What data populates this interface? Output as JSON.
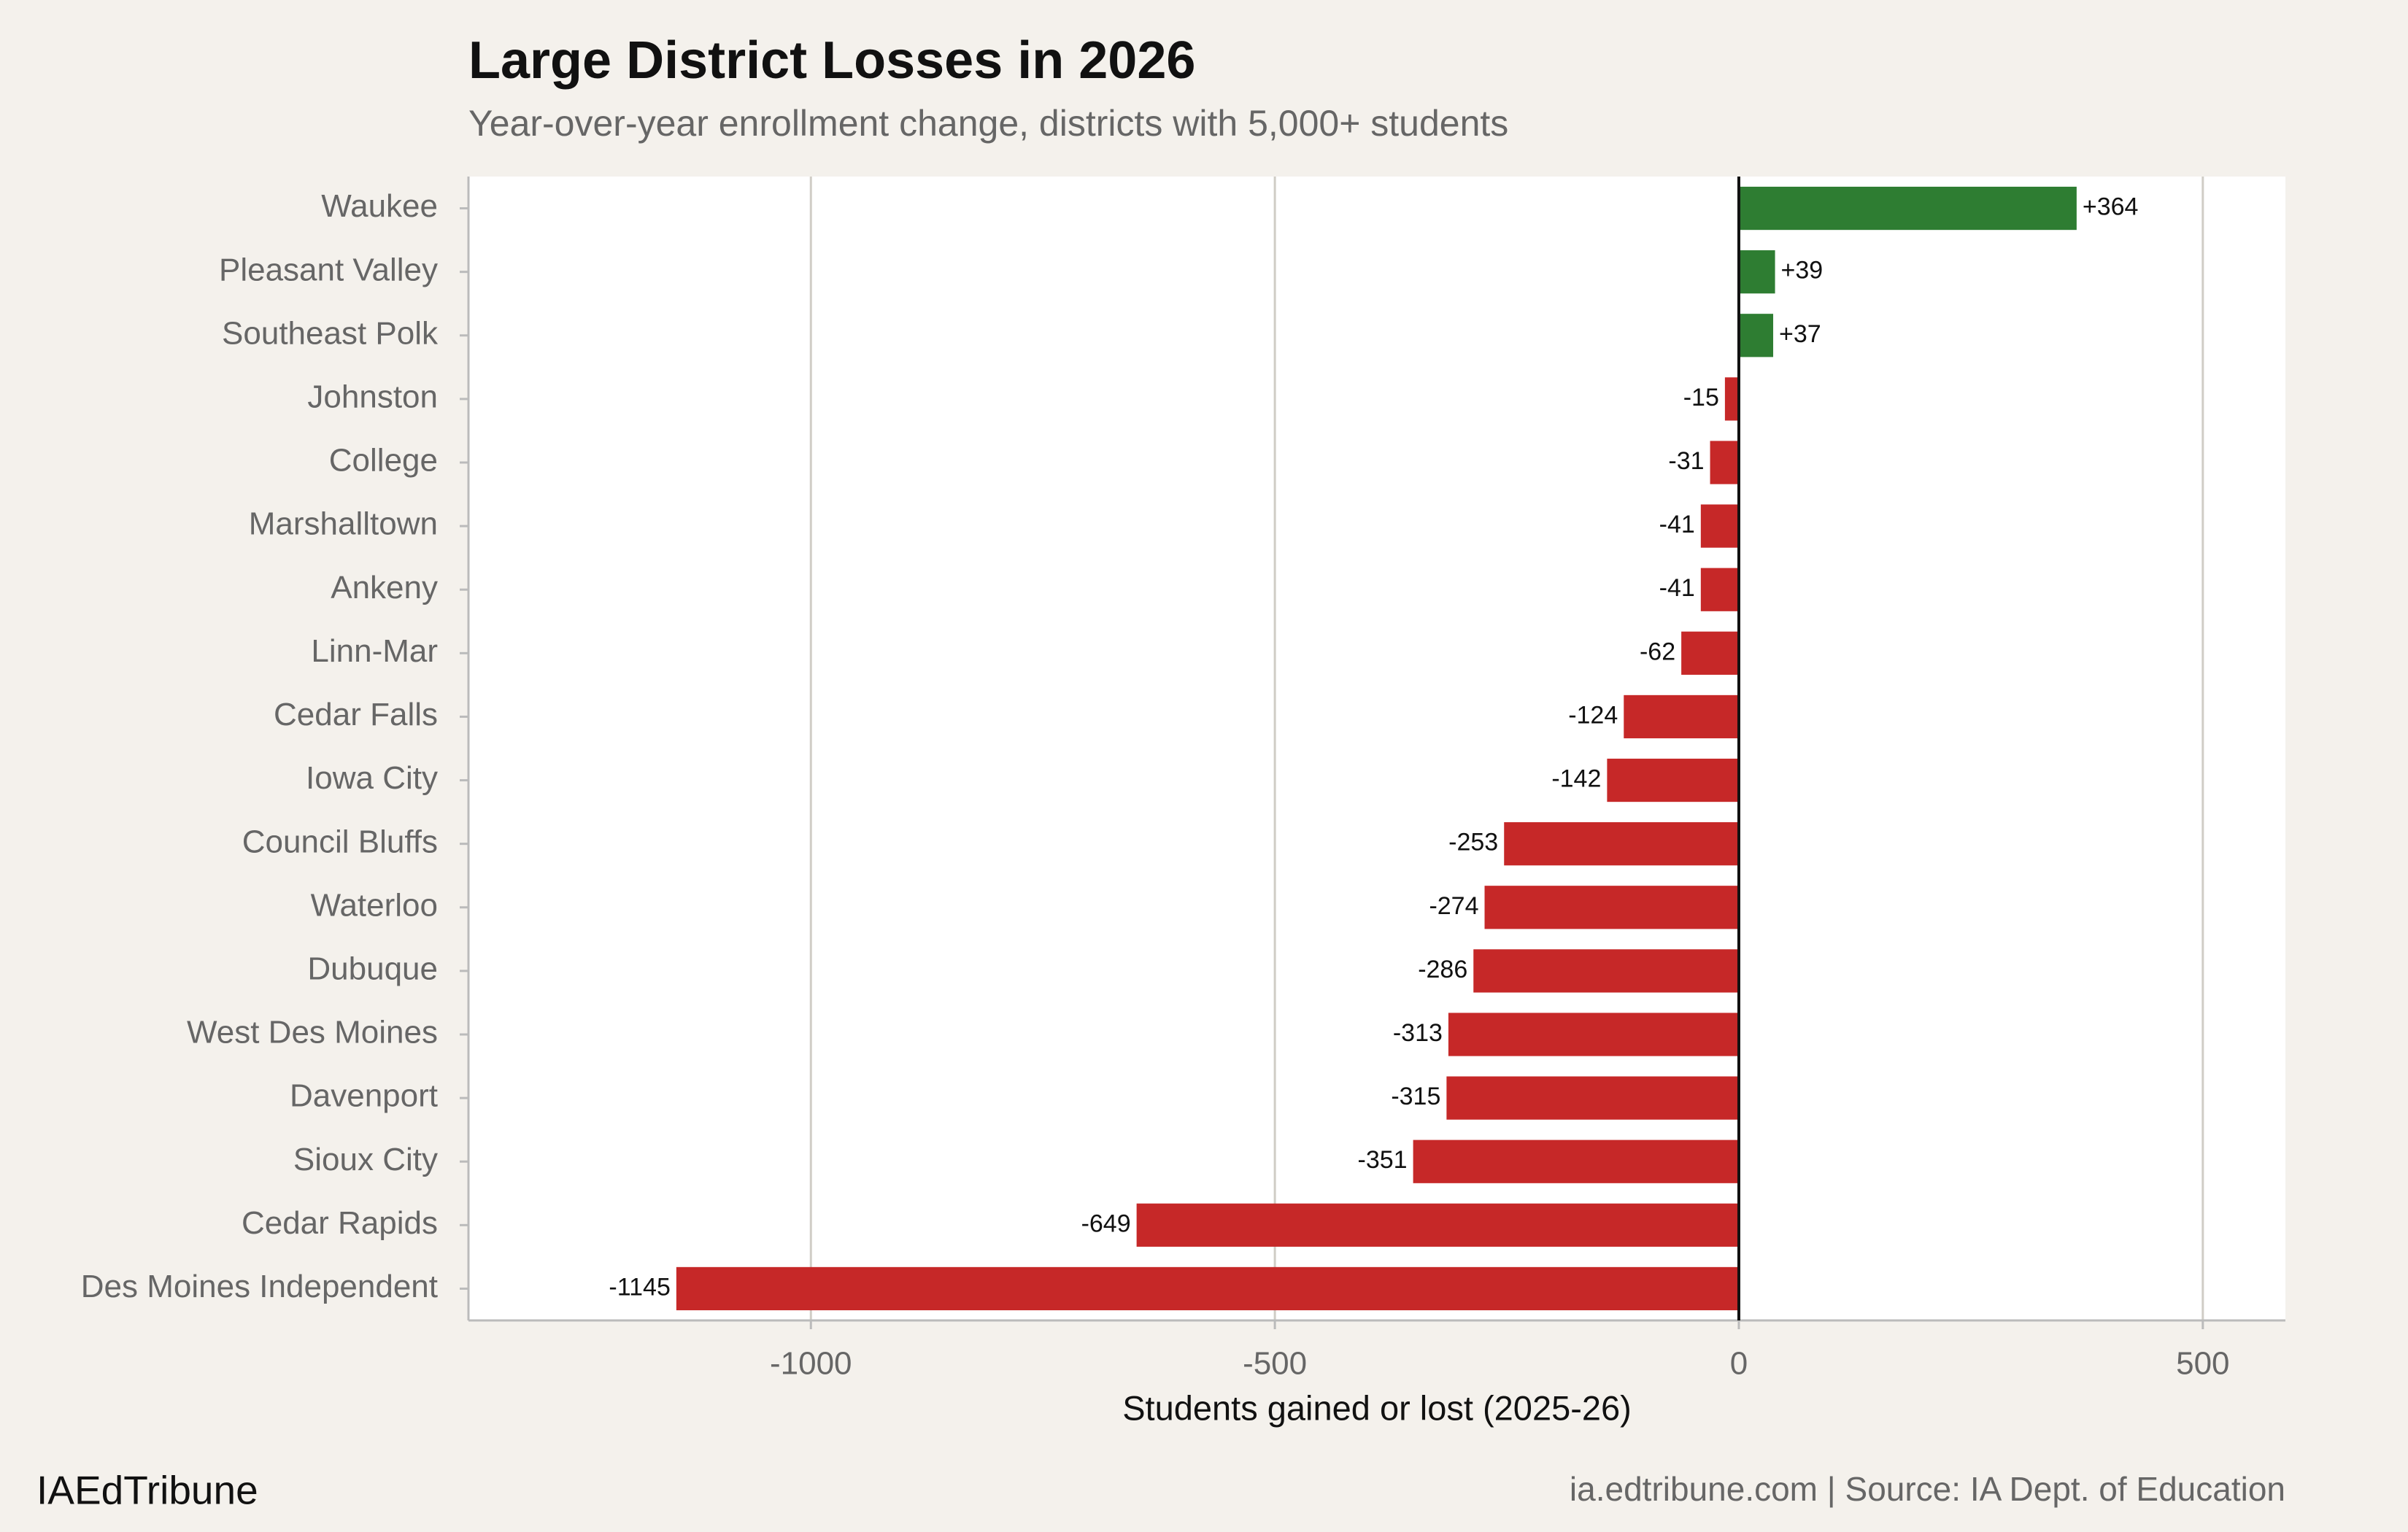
{
  "chart_data": {
    "type": "barh",
    "title": "Large District Losses in 2026",
    "subtitle": "Year-over-year enrollment change, districts with 5,000+ students",
    "xlabel": "Students gained or lost (2025-26)",
    "brand": "IAEdTribune",
    "source": "ia.edtribune.com | Source: IA Dept. of Education",
    "categories": [
      "Waukee",
      "Pleasant Valley",
      "Southeast Polk",
      "Johnston",
      "College",
      "Marshalltown",
      "Ankeny",
      "Linn-Mar",
      "Cedar Falls",
      "Iowa City",
      "Council Bluffs",
      "Waterloo",
      "Dubuque",
      "West Des Moines",
      "Davenport",
      "Sioux City",
      "Cedar Rapids",
      "Des Moines Independent"
    ],
    "values": [
      364,
      39,
      37,
      -15,
      -31,
      -41,
      -41,
      -62,
      -124,
      -142,
      -253,
      -274,
      -286,
      -313,
      -315,
      -351,
      -649,
      -1145
    ],
    "value_labels": [
      "+364",
      "+39",
      "+37",
      "-15",
      "-31",
      "-41",
      "-41",
      "-62",
      "-124",
      "-142",
      "-253",
      "-274",
      "-286",
      "-313",
      "-315",
      "-351",
      "-649",
      "-1145"
    ],
    "colors": {
      "positive": "#2e7d32",
      "negative": "#c62828"
    },
    "xlim": [
      -1369,
      589
    ],
    "xticks": [
      -1000,
      -500,
      0,
      500
    ],
    "reference_line": 0,
    "grid": true
  }
}
